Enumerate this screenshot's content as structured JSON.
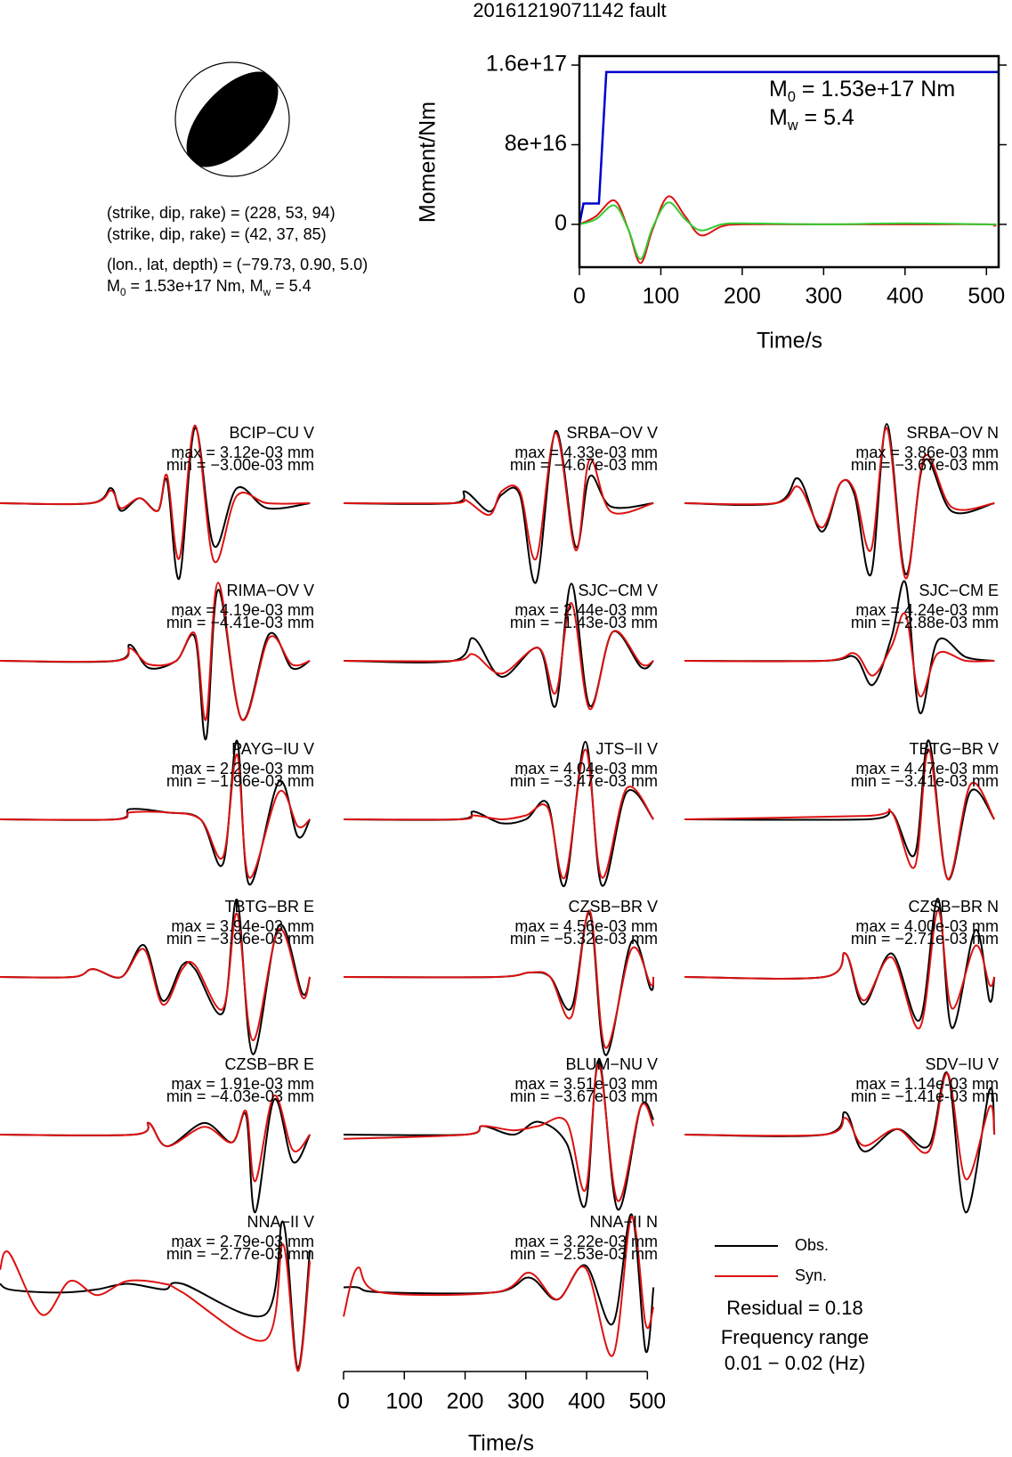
{
  "chart_data": [
    {
      "type": "focal_mechanism",
      "lines": [
        "(strike, dip, rake) = (228, 53, 94)",
        "(strike, dip, rake) = (42, 37, 85)",
        "(lon., lat, depth) = (−79.73, 0.90, 5.0)"
      ],
      "moment_line": [
        {
          "text": "M"
        },
        {
          "sub": "0"
        },
        {
          "text": " = 1.53e+17 Nm, M"
        },
        {
          "sub": "w"
        },
        {
          "text": " = 5.4"
        }
      ]
    },
    {
      "type": "line",
      "title": "20161219071142 fault",
      "ylabel": "Moment/Nm",
      "xlabel": "Time/s",
      "xlim": [
        0,
        515
      ],
      "xticks": [
        0,
        100,
        200,
        300,
        400,
        500
      ],
      "ylim": [
        -4.3e+16,
        1.69e+17
      ],
      "yticks": [
        0,
        {
          "value": 8e+16,
          "label": "8e+16"
        },
        {
          "value": 1.6e+17,
          "label": "1.6e+17"
        }
      ],
      "annotations": [
        [
          {
            "text": "M"
          },
          {
            "sub": "0"
          },
          {
            "text": " = 1.53e+17 Nm"
          }
        ],
        [
          {
            "text": "M"
          },
          {
            "sub": "w"
          },
          {
            "text": " = 5.4"
          }
        ]
      ],
      "series": [
        {
          "color": "#0000cc",
          "x": [
            0,
            5,
            24,
            33,
            515
          ],
          "values": [
            0,
            2.1e+16,
            2.1e+16,
            1.53e+17,
            1.53e+17
          ]
        },
        {
          "color": "#dd1111",
          "x": [
            0,
            20,
            43,
            60,
            75,
            90,
            109,
            130,
            149,
            175,
            200,
            300,
            400,
            500,
            510
          ],
          "values": [
            0,
            8000000000000000.0,
            2.4e+16,
            -5000000000000000.0,
            -3.9e+16,
            -5000000000000000.0,
            2.8e+16,
            8000000000000000.0,
            -1.1e+16,
            -2000000000000000.0,
            0,
            0,
            0,
            0,
            -2000000000000000.0
          ]
        },
        {
          "color": "#33cc33",
          "x": [
            0,
            20,
            43,
            60,
            75,
            90,
            109,
            130,
            149,
            175,
            200,
            300,
            400,
            500,
            510
          ],
          "values": [
            0,
            5000000000000000.0,
            1.9e+16,
            -5000000000000000.0,
            -3.5e+16,
            -3000000000000000.0,
            2.2e+16,
            5000000000000000.0,
            -6000000000000000.0,
            0,
            1000000000000000.0,
            0,
            1000000000000000.0,
            0,
            0
          ]
        }
      ]
    },
    {
      "type": "waveforms",
      "xlabel": "Time/s",
      "xlim": [
        0,
        520
      ],
      "xticks": [
        0,
        100,
        200,
        300,
        400,
        500
      ],
      "legend": [
        {
          "name": "Obs.",
          "color": "#000000"
        },
        {
          "name": "Syn.",
          "color": "#dd1111"
        }
      ],
      "notes": [
        "Residual = 0.18",
        "Frequency range",
        "0.01 − 0.02 (Hz)"
      ],
      "stations": [
        {
          "name": "BCIP−CU V",
          "max": 0.00312,
          "max_label": "max = 3.12e-03 mm",
          "min": -0.003,
          "min_label": "min = −3.00e-03 mm",
          "x": [
            0,
            150,
            183,
            199,
            230,
            260,
            275,
            295,
            321,
            352,
            390,
            440,
            510
          ],
          "obs": [
            0,
            0,
            0.0006,
            -0.0003,
            0.0002,
            -0.0003,
            0.0009,
            -0.003,
            0.003,
            -0.0017,
            0.0006,
            -0.0002,
            0
          ],
          "syn": [
            0,
            0,
            0.0005,
            -0.0002,
            0.0002,
            -0.0003,
            0.0011,
            -0.0022,
            0.0031,
            -0.0023,
            0.0003,
            0,
            0
          ]
        },
        {
          "name": "SRBA−OV V",
          "max": 0.00433,
          "max_label": "max = 4.33e-03 mm",
          "min": -0.00467,
          "min_label": "min = −4.67e-03 mm",
          "x": [
            0,
            180,
            200,
            240,
            260,
            290,
            317,
            349,
            382,
            405,
            440,
            510
          ],
          "obs": [
            0,
            0,
            0.0007,
            -0.0005,
            0.0005,
            0.0005,
            -0.0047,
            0.0043,
            -0.0026,
            0.0016,
            -0.0002,
            0
          ],
          "syn": [
            0,
            0,
            0.0002,
            -0.0007,
            0.0007,
            0.0007,
            -0.0033,
            0.0042,
            -0.0028,
            0.0026,
            -0.0005,
            0
          ]
        },
        {
          "name": "SRBA−OV N",
          "max": 0.00386,
          "max_label": "max = 3.86e-03 mm",
          "min": -0.00367,
          "min_label": "min = −3.67e-03 mm",
          "x": [
            0,
            150,
            188,
            226,
            257,
            280,
            307,
            333,
            364,
            395,
            440,
            510
          ],
          "obs": [
            0,
            0,
            0.0012,
            -0.0014,
            0.001,
            0.0004,
            -0.0035,
            0.0039,
            -0.0035,
            0.0021,
            -0.0004,
            0
          ],
          "syn": [
            0,
            0,
            0.0008,
            -0.0012,
            0.001,
            0.0006,
            -0.0023,
            0.0037,
            -0.0037,
            0.0023,
            -0.0002,
            0
          ]
        },
        {
          "name": "RIMA−OV V",
          "max": 0.00419,
          "max_label": "max = 4.19e-03 mm",
          "min": -0.00441,
          "min_label": "min = −4.41e-03 mm",
          "x": [
            0,
            190,
            214,
            245,
            290,
            321,
            339,
            359,
            398,
            443,
            480,
            510
          ],
          "obs": [
            0,
            0,
            0.0009,
            -0.0004,
            0,
            0.0013,
            -0.0044,
            0.004,
            -0.0033,
            0.0015,
            -0.0004,
            0
          ],
          "syn": [
            0,
            0,
            0.0007,
            -0.0002,
            0,
            0.0015,
            -0.0033,
            0.0044,
            -0.0033,
            0.0013,
            -0.0002,
            0
          ]
        },
        {
          "name": "SJC−CM V",
          "max": 0.00244,
          "max_label": "max = 2.44e-03 mm",
          "min": -0.00143,
          "min_label": "min = −1.43e-03 mm",
          "x": [
            0,
            180,
            214,
            260,
            321,
            349,
            375,
            405,
            443,
            490,
            510
          ],
          "obs": [
            0,
            0,
            0.0007,
            -0.0005,
            0.0004,
            -0.0014,
            0.0024,
            -0.0014,
            0.0009,
            -0.0002,
            0
          ],
          "syn": [
            0,
            0,
            0.0002,
            -0.0004,
            0.0004,
            -0.001,
            0.0018,
            -0.0015,
            0.0009,
            -0.0001,
            0
          ]
        },
        {
          "name": "SJC−CM E",
          "max": 0.00424,
          "max_label": "max = 4.24e-03 mm",
          "min": -0.00288,
          "min_label": "min = −2.88e-03 mm",
          "x": [
            0,
            230,
            280,
            310,
            341,
            364,
            387,
            417,
            463,
            510
          ],
          "obs": [
            0,
            0,
            0.0002,
            -0.0013,
            0.0013,
            0.0042,
            -0.0028,
            0.0011,
            0.0002,
            0
          ],
          "syn": [
            0,
            0,
            0.0004,
            -0.0008,
            0.0008,
            0.0025,
            -0.0019,
            0.0004,
            0,
            0
          ]
        },
        {
          "name": "PAYG−IU V",
          "max": 0.00229,
          "max_label": "max = 2.29e-03 mm",
          "min": -0.00196,
          "min_label": "min = −1.96e-03 mm",
          "x": [
            0,
            190,
            214,
            275,
            330,
            367,
            390,
            410,
            459,
            490,
            510
          ],
          "obs": [
            0,
            0,
            0.0003,
            0.0002,
            0,
            -0.0013,
            0.0023,
            -0.0019,
            0.0011,
            -0.0005,
            0
          ],
          "syn": [
            0,
            0,
            0.0002,
            0.0002,
            0,
            -0.0011,
            0.0019,
            -0.0017,
            0.0008,
            -0.0002,
            0
          ]
        },
        {
          "name": "JTS−II V",
          "max": 0.00404,
          "max_label": "max = 4.04e-03 mm",
          "min": -0.00347,
          "min_label": "min = −3.47e-03 mm",
          "x": [
            0,
            190,
            214,
            260,
            300,
            336,
            364,
            398,
            425,
            466,
            510
          ],
          "obs": [
            0,
            0,
            0.0004,
            -0.0002,
            0,
            0.0008,
            -0.0034,
            0.004,
            -0.0034,
            0.0014,
            0
          ],
          "syn": [
            0,
            0,
            0.0002,
            0,
            0.0002,
            0.0006,
            -0.003,
            0.0036,
            -0.003,
            0.0016,
            0
          ]
        },
        {
          "name": "TBTG−BR V",
          "max": 0.00447,
          "max_label": "max = 4.47e-03 mm",
          "min": -0.00341,
          "min_label": "min = −3.41e-03 mm",
          "x": [
            0,
            300,
            341,
            379,
            402,
            433,
            471,
            510
          ],
          "obs": [
            0,
            0,
            0.0004,
            -0.002,
            0.0045,
            -0.0034,
            0.0016,
            0
          ],
          "syn": [
            0,
            0.0002,
            0.0004,
            -0.0027,
            0.004,
            -0.0034,
            0.002,
            0
          ]
        },
        {
          "name": "TBTG−BR E",
          "max": 0.00394,
          "max_label": "max = 3.94e-03 mm",
          "min": -0.00396,
          "min_label": "min = −3.96e-03 mm",
          "x": [
            0,
            120,
            153,
            200,
            237,
            268,
            300,
            321,
            367,
            390,
            416,
            459,
            497,
            510
          ],
          "obs": [
            0,
            0,
            0.0004,
            0,
            0.0016,
            -0.0012,
            0.0006,
            0.0004,
            -0.0018,
            0.0039,
            -0.0039,
            0.0026,
            -0.0008,
            0
          ],
          "syn": [
            0,
            0,
            0.0004,
            0,
            0.0014,
            -0.0014,
            0.0004,
            0.0006,
            -0.0016,
            0.0032,
            -0.0032,
            0.0024,
            -0.001,
            0
          ]
        },
        {
          "name": "CZSB−BR V",
          "max": 0.00456,
          "max_label": "max = 4.56e-03 mm",
          "min": -0.00532,
          "min_label": "min = −5.32e-03 mm",
          "x": [
            0,
            250,
            306,
            340,
            375,
            405,
            431,
            474,
            505,
            510
          ],
          "obs": [
            0,
            0,
            0.0003,
            0,
            -0.0021,
            0.0043,
            -0.0053,
            0.0024,
            -0.0008,
            0
          ],
          "syn": [
            0,
            0,
            0.0003,
            0,
            -0.0027,
            0.0045,
            -0.0048,
            0.0019,
            -0.0005,
            0
          ]
        },
        {
          "name": "CZSB−BR N",
          "max": 0.004,
          "max_label": "max = 4.00e-03 mm",
          "min": -0.00271,
          "min_label": "min = −2.71e-03 mm",
          "x": [
            0,
            230,
            265,
            295,
            341,
            387,
            417,
            440,
            479,
            502,
            510
          ],
          "obs": [
            0,
            0,
            0.0012,
            -0.0014,
            0.0012,
            -0.0022,
            0.004,
            -0.0026,
            0.0024,
            -0.0012,
            0
          ],
          "syn": [
            0,
            0,
            0.0012,
            -0.0012,
            0.001,
            -0.0026,
            0.0034,
            -0.0016,
            0.0016,
            -0.0004,
            0
          ]
        },
        {
          "name": "CZSB−BR E",
          "max": 0.00191,
          "max_label": "max = 1.91e-03 mm",
          "min": -0.00403,
          "min_label": "min = −4.03e-03 mm",
          "x": [
            0,
            220,
            245,
            275,
            336,
            382,
            405,
            420,
            451,
            482,
            510
          ],
          "obs": [
            0,
            0,
            0.0006,
            -0.0006,
            0.0006,
            -0.0004,
            0.001,
            -0.004,
            0.0018,
            -0.0014,
            0
          ],
          "syn": [
            0,
            0,
            0.0006,
            -0.0006,
            0.0004,
            -0.0004,
            0.0012,
            -0.0024,
            0.002,
            -0.0008,
            0
          ]
        },
        {
          "name": "BLUM−NU V",
          "max": 0.00351,
          "max_label": "max = 3.51e-03 mm",
          "min": -0.00367,
          "min_label": "min = −3.67e-03 mm",
          "x": [
            0,
            200,
            229,
            280,
            321,
            367,
            398,
            420,
            451,
            489,
            510
          ],
          "obs": [
            0,
            0,
            0.0004,
            0,
            0.0006,
            -0.0004,
            -0.0033,
            0.0035,
            -0.0035,
            0.0013,
            0.0007
          ],
          "syn": [
            -0.0002,
            0,
            0.0004,
            0.0002,
            0.0004,
            0.0006,
            -0.0026,
            0.0033,
            -0.0031,
            0.0013,
            0.0004
          ]
        },
        {
          "name": "SDV−IU V",
          "max": 0.00114,
          "max_label": "max = 1.14e-03 mm",
          "min": -0.00141,
          "min_label": "min = −1.41e-03 mm",
          "x": [
            0,
            230,
            265,
            295,
            350,
            402,
            433,
            463,
            502,
            510
          ],
          "obs": [
            0,
            0,
            0.0004,
            -0.0003,
            0.0001,
            -0.0002,
            0.0011,
            -0.0014,
            0.0008,
            0
          ],
          "syn": [
            0,
            0,
            0.0003,
            -0.0002,
            0.0001,
            -0.0003,
            0.0011,
            -0.0008,
            0.0005,
            0
          ]
        },
        {
          "name": "NNA−II V",
          "max": 0.00279,
          "max_label": "max = 2.79e-03 mm",
          "min": -0.00277,
          "min_label": "min = −2.77e-03 mm",
          "x": [
            0,
            15,
            69,
            115,
            160,
            210,
            270,
            300,
            436,
            466,
            490,
            510
          ],
          "obs": [
            0.0003,
            0.0001,
            0,
            0,
            0.0001,
            0.0003,
            0.0001,
            0.0003,
            -0.0008,
            0.0025,
            -0.0027,
            0.0015
          ],
          "syn": [
            0.0008,
            0.0014,
            -0.0008,
            0.0004,
            -0.0001,
            0.0004,
            0.0003,
            0,
            -0.0017,
            0.0017,
            -0.0028,
            0.0011
          ]
        },
        {
          "name": "NNA−II N",
          "max": 0.00322,
          "max_label": "max = 3.22e-03 mm",
          "min": -0.00253,
          "min_label": "min = −2.53e-03 mm",
          "x": [
            0,
            23,
            60,
            250,
            306,
            352,
            398,
            443,
            474,
            497,
            510
          ],
          "obs": [
            0.0002,
            0.0002,
            0,
            0,
            0.0006,
            -0.0003,
            0.0011,
            -0.0013,
            0.0032,
            -0.0024,
            0.0002
          ],
          "syn": [
            -0.001,
            0.001,
            0,
            0,
            0.0008,
            -0.0003,
            0.001,
            -0.0026,
            0.0031,
            -0.0013,
            -0.0006
          ]
        }
      ]
    }
  ]
}
